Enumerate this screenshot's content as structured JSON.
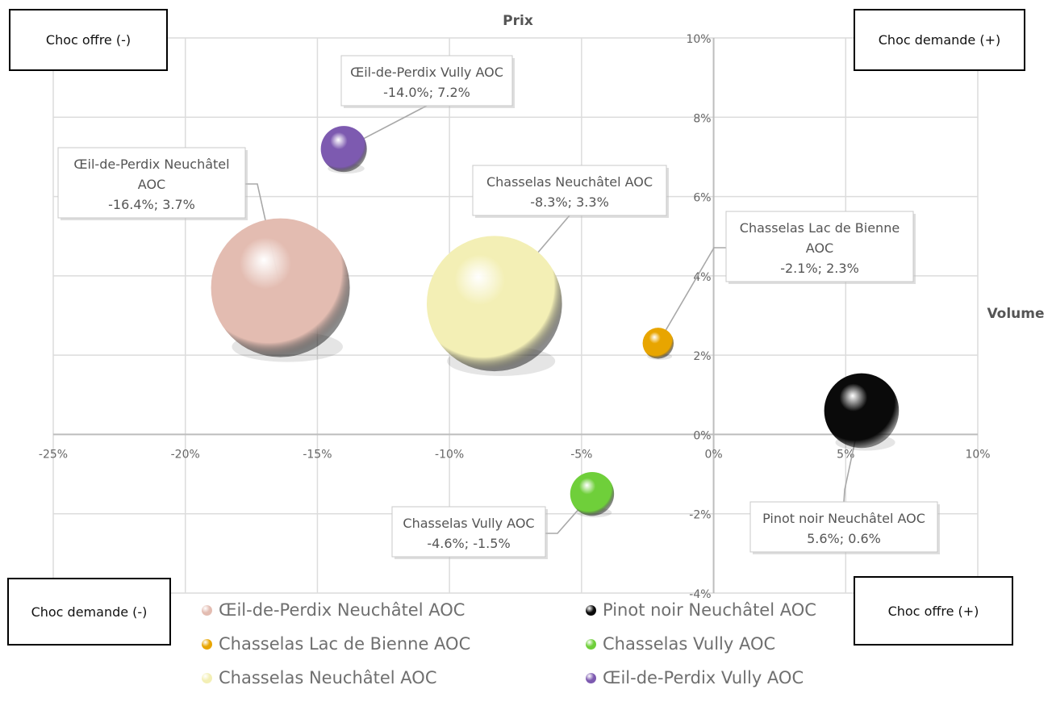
{
  "quadrants": {
    "top_left": "Choc offre (-)",
    "top_right": "Choc demande (+)",
    "bottom_left": "Choc demande (-)",
    "bottom_right": "Choc offre (+)"
  },
  "chart_data": {
    "type": "bubble",
    "title": "",
    "xlabel": "Volume",
    "ylabel": "Prix",
    "xlim": [
      -25,
      10
    ],
    "ylim": [
      -4,
      10
    ],
    "x_ticks": [
      -25,
      -20,
      -15,
      -10,
      -5,
      0,
      5,
      10
    ],
    "y_ticks": [
      -4,
      -2,
      0,
      2,
      4,
      6,
      8,
      10
    ],
    "x_tick_labels": [
      "-25%",
      "-20%",
      "-15%",
      "-10%",
      "-5%",
      "0%",
      "5%",
      "10%"
    ],
    "y_tick_labels": [
      "-4%",
      "-2%",
      "0%",
      "2%",
      "4%",
      "6%",
      "8%",
      "10%"
    ],
    "grid": true,
    "legend_position": "bottom",
    "series": [
      {
        "name": "Œil-de-Perdix Neuchâtel AOC",
        "x": -16.4,
        "y": 3.7,
        "size": 1.0,
        "color": "#e3bcb1",
        "label_lines": [
          "Œil-de-Perdix Neuchâtel",
          "AOC",
          "-16.4%; 3.7%"
        ]
      },
      {
        "name": "Chasselas Lac de Bienne AOC",
        "x": -2.1,
        "y": 2.3,
        "size": 0.05,
        "color": "#e8a500",
        "label_lines": [
          "Chasselas Lac de Bienne",
          "AOC",
          "-2.1%; 2.3%"
        ]
      },
      {
        "name": "Chasselas Neuchâtel AOC",
        "x": -8.3,
        "y": 3.3,
        "size": 0.95,
        "color": "#f3efb5",
        "label_lines": [
          "Chasselas Neuchâtel AOC",
          "-8.3%; 3.3%"
        ]
      },
      {
        "name": "Pinot noir Neuchâtel AOC",
        "x": 5.6,
        "y": 0.6,
        "size": 0.29,
        "color": "#0a0a0a",
        "label_lines": [
          "Pinot noir Neuchâtel AOC",
          "5.6%; 0.6%"
        ]
      },
      {
        "name": "Chasselas Vully AOC",
        "x": -4.6,
        "y": -1.5,
        "size": 0.1,
        "color": "#6fcf3a",
        "label_lines": [
          "Chasselas Vully AOC",
          "-4.6%; -1.5%"
        ]
      },
      {
        "name": "Œil-de-Perdix Vully AOC",
        "x": -14.0,
        "y": 7.2,
        "size": 0.11,
        "color": "#7d5ab0",
        "label_lines": [
          "Œil-de-Perdix Vully AOC",
          "-14.0%; 7.2%"
        ]
      }
    ]
  }
}
